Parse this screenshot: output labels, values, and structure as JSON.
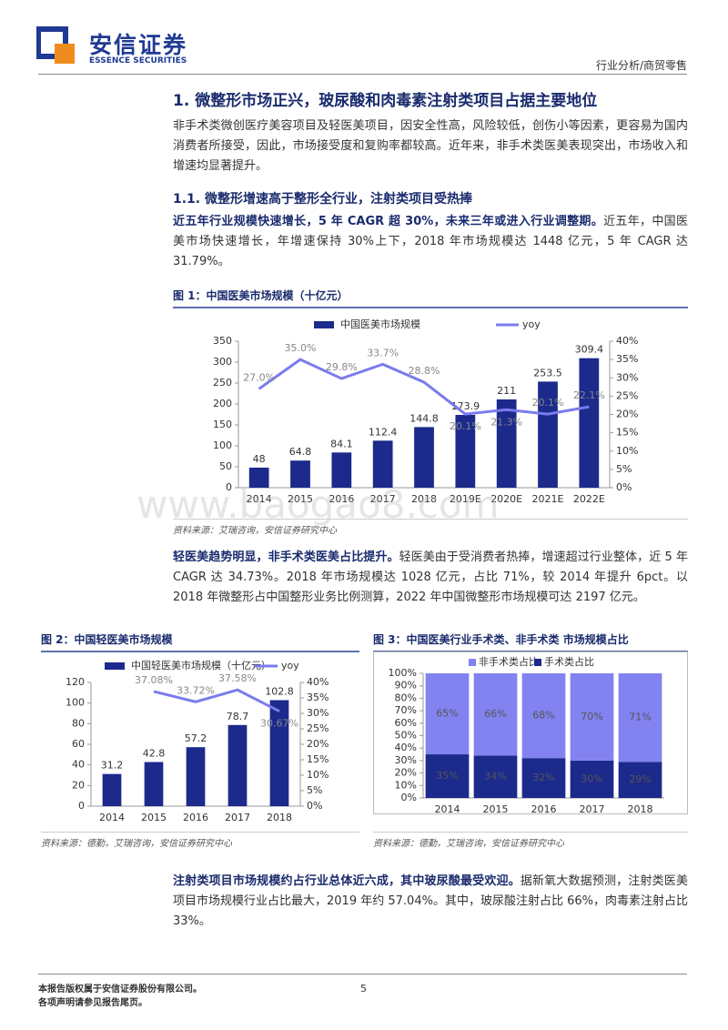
{
  "header": {
    "brand": "安信证券",
    "brand_en": "ESSENCE SECURITIES",
    "category": "行业分析/商贸零售"
  },
  "h1": "1. 微整形市场正兴，玻尿酸和肉毒素注射类项目占据主要地位",
  "p1": "非手术类微创医疗美容项目及轻医美项目，因安全性高，风险较低，创伤小等因素，更容易为国内消费者所接受，因此，市场接受度和复购率都较高。近年来，非手术类医美表现突出，市场收入和增速均显著提升。",
  "h2": "1.1. 微整形增速高于整形全行业，注射类项目受热捧",
  "p2": {
    "lead": "近五年行业规模快速增长，5 年 CAGR 超 30%，未来三年或进入行业调整期。",
    "text": "近五年，中国医美市场快速增长，年增速保持 30%上下，2018 年市场规模达 1448 亿元，5 年 CAGR 达 31.79%。"
  },
  "p3": {
    "lead": "轻医美趋势明显，非手术类医美占比提升。",
    "text": "轻医美由于受消费者热捧，增速超过行业整体，近 5 年 CAGR 达 34.73%。2018 年市场规模达 1028 亿元，占比 71%，较 2014 年提升 6pct。以 2018 年微整形占中国整形业务比例测算，2022 年中国微整形市场规模可达 2197 亿元。"
  },
  "p4": {
    "lead": "注射类项目市场规模约占行业总体近六成，其中玻尿酸最受欢迎。",
    "text": "据新氧大数据预测，注射类医美项目市场规模行业占比最大，2019 年约 57.04%。其中，玻尿酸注射占比 66%，肉毒素注射占比 33%。"
  },
  "watermark": "www.baogao8.com",
  "footer": {
    "copyright": "本报告版权属于安信证券股份有限公司。",
    "notice": "各项声明请参见报告尾页。",
    "page": "5"
  },
  "chart_data": [
    {
      "type": "combo",
      "title": "图 1：中国医美市场规模（十亿元）",
      "source": "资料来源：艾瑞咨询，安信证券研究中心",
      "categories": [
        "2014",
        "2015",
        "2016",
        "2017",
        "2018",
        "2019E",
        "2020E",
        "2021E",
        "2022E"
      ],
      "series": [
        {
          "name": "中国医美市场规模",
          "type": "bar",
          "color": "#1c2a8c",
          "values": [
            48,
            64.8,
            84.1,
            112.4,
            144.8,
            173.9,
            211,
            253.5,
            309.4
          ]
        },
        {
          "name": "yoy",
          "type": "line",
          "axis": "y2",
          "color": "#7b7bee",
          "values": [
            27.0,
            35.0,
            29.8,
            33.7,
            28.8,
            20.1,
            21.3,
            20.1,
            22.1
          ],
          "value_labels": [
            "27.0%",
            "35.0%",
            "29.8%",
            "33.7%",
            "28.8%",
            "20.1%",
            "21.3%",
            "20.1%",
            "22.1%"
          ]
        }
      ],
      "ylim": [
        0,
        350
      ],
      "yticks": [
        0,
        50,
        100,
        150,
        200,
        250,
        300,
        350
      ],
      "y2lim": [
        0,
        40
      ],
      "y2ticks": [
        {
          "value": 0,
          "label": "0%"
        },
        {
          "value": 5,
          "label": "5%"
        },
        {
          "value": 10,
          "label": "10%"
        },
        {
          "value": 15,
          "label": "15%"
        },
        {
          "value": 20,
          "label": "20%"
        },
        {
          "value": 25,
          "label": "25%"
        },
        {
          "value": 30,
          "label": "30%"
        },
        {
          "value": 35,
          "label": "35%"
        },
        {
          "value": 40,
          "label": "40%"
        }
      ]
    },
    {
      "type": "combo",
      "title": "图 2：中国轻医美市场规模",
      "source": "资料来源：德勤，艾瑞咨询，安信证券研究中心",
      "categories": [
        "2014",
        "2015",
        "2016",
        "2017",
        "2018"
      ],
      "series": [
        {
          "name": "中国轻医美市场规模（十亿元）",
          "type": "bar",
          "color": "#1c2a8c",
          "values": [
            31.2,
            42.8,
            57.2,
            78.7,
            102.8
          ]
        },
        {
          "name": "yoy",
          "type": "line",
          "axis": "y2",
          "color": "#7b7bee",
          "values": [
            null,
            37.08,
            33.72,
            37.58,
            30.67
          ],
          "value_labels": [
            null,
            "37.08%",
            "33.72%",
            "37.58%",
            "30.67%"
          ]
        }
      ],
      "ylim": [
        0,
        120
      ],
      "yticks": [
        0,
        20,
        40,
        60,
        80,
        100,
        120
      ],
      "y2lim": [
        0,
        40
      ],
      "y2ticks": [
        {
          "value": 0,
          "label": "0%"
        },
        {
          "value": 5,
          "label": "5%"
        },
        {
          "value": 10,
          "label": "10%"
        },
        {
          "value": 15,
          "label": "15%"
        },
        {
          "value": 20,
          "label": "20%"
        },
        {
          "value": 25,
          "label": "25%"
        },
        {
          "value": 30,
          "label": "30%"
        },
        {
          "value": 35,
          "label": "35%"
        },
        {
          "value": 40,
          "label": "40%"
        }
      ]
    },
    {
      "type": "stacked_bar",
      "title": "图 3：中国医美行业手术类、非手术类 市场规模占比",
      "source": "资料来源：德勤，艾瑞咨询，安信证券研究中心",
      "categories": [
        "2014",
        "2015",
        "2016",
        "2017",
        "2018"
      ],
      "series": [
        {
          "name": "非手术类占比",
          "color": "#8282f0",
          "values": [
            65,
            66,
            68,
            70,
            71
          ],
          "value_labels": [
            "65%",
            "66%",
            "68%",
            "70%",
            "71%"
          ]
        },
        {
          "name": "手术类占比",
          "color": "#1c2a8c",
          "values": [
            35,
            34,
            32,
            30,
            29
          ],
          "value_labels": [
            "35%",
            "34%",
            "32%",
            "30%",
            "29%"
          ]
        }
      ],
      "ylim": [
        0,
        100
      ],
      "yticks": [
        {
          "value": 0,
          "label": "0%"
        },
        {
          "value": 10,
          "label": "10%"
        },
        {
          "value": 20,
          "label": "20%"
        },
        {
          "value": 30,
          "label": "30%"
        },
        {
          "value": 40,
          "label": "40%"
        },
        {
          "value": 50,
          "label": "50%"
        },
        {
          "value": 60,
          "label": "60%"
        },
        {
          "value": 70,
          "label": "70%"
        },
        {
          "value": 80,
          "label": "80%"
        },
        {
          "value": 90,
          "label": "90%"
        },
        {
          "value": 100,
          "label": "100%"
        }
      ]
    }
  ]
}
